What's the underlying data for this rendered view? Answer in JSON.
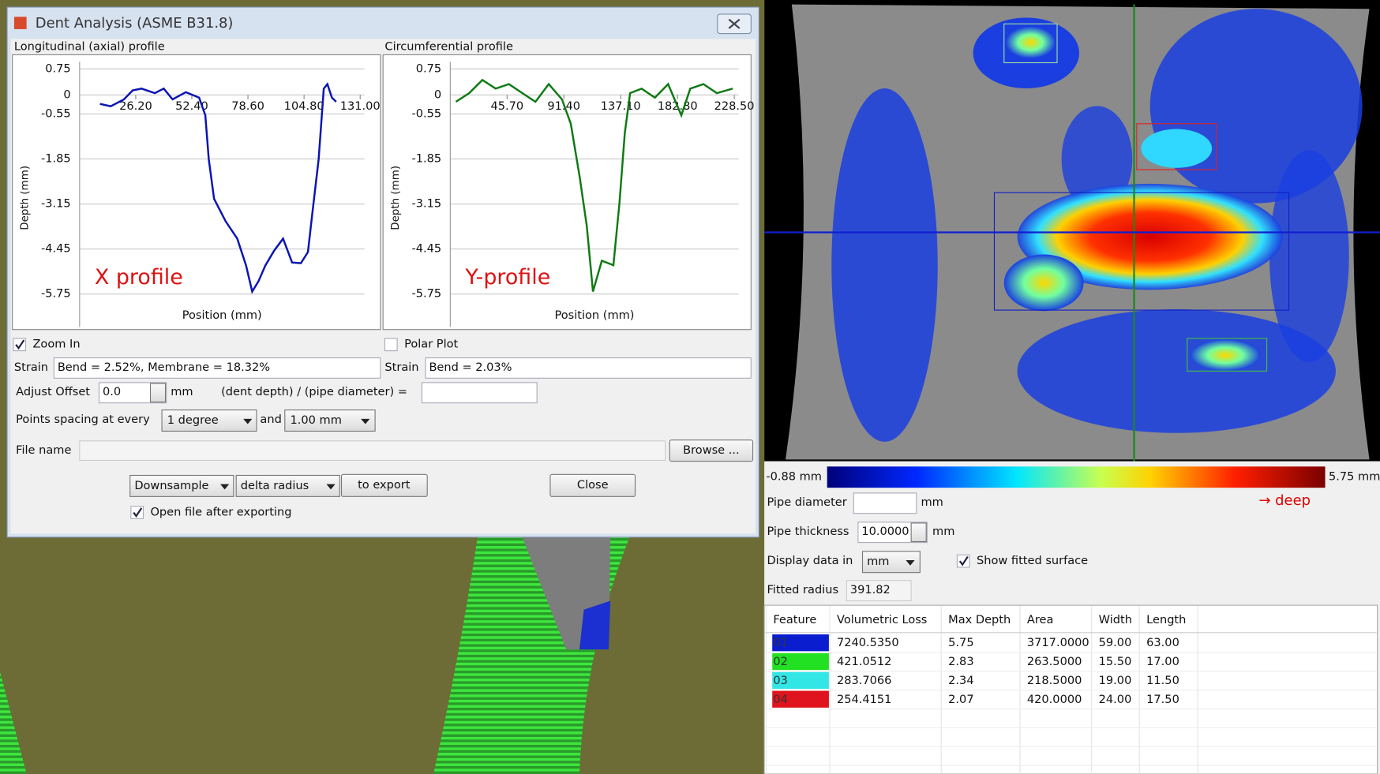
{
  "window": {
    "title": "Dent Analysis (ASME B31.8)"
  },
  "chart_data": [
    {
      "type": "line",
      "title": "Longitudinal (axial) profile",
      "x_label": "Position (mm)",
      "y_label": "Depth (mm)",
      "annotation": "X profile",
      "x": [
        9.5,
        14.5,
        20.7,
        24.8,
        28.9,
        35.1,
        39.3,
        43.4,
        49.6,
        55.8,
        58.7,
        60.3,
        62.8,
        68.2,
        73.6,
        77.7,
        80.6,
        83.5,
        86.8,
        90.9,
        95.0,
        99.2,
        103.3,
        106.6,
        108.7,
        111.6,
        114.0,
        115.7,
        117.8,
        119.8
      ],
      "values": [
        -0.26,
        -0.33,
        -0.13,
        0.13,
        0.18,
        0.05,
        0.18,
        -0.13,
        0.08,
        -0.08,
        -0.59,
        -1.86,
        -3.0,
        -3.65,
        -4.15,
        -4.92,
        -5.68,
        -5.38,
        -4.92,
        -4.49,
        -4.15,
        -4.84,
        -4.86,
        -4.54,
        -3.39,
        -1.86,
        0.18,
        0.31,
        -0.08,
        -0.2
      ],
      "color": "#0a14b4",
      "xlim": [
        0,
        133
      ],
      "ylim": [
        -6.7,
        0.75
      ],
      "xticks": [
        {
          "value": 26.2,
          "label": "26.20"
        },
        {
          "value": 52.4,
          "label": "52.40"
        },
        {
          "value": 78.6,
          "label": "78.60"
        },
        {
          "value": 104.8,
          "label": "104.80"
        },
        {
          "value": 131,
          "label": "131.00"
        }
      ],
      "yticks": [
        0.75,
        0,
        -0.55,
        -1.85,
        -3.15,
        -4.45,
        -5.75
      ],
      "grid": true
    },
    {
      "type": "line",
      "title": "Circumferential profile",
      "x_label": "Position (mm)",
      "y_label": "Depth (mm)",
      "annotation": "Y-profile",
      "x": [
        4.5,
        15.2,
        25.8,
        36.5,
        47.2,
        57.9,
        68.5,
        79.2,
        89.9,
        97.0,
        104.1,
        109.8,
        114.8,
        121.9,
        131.2,
        136.1,
        140.4,
        144.7,
        153.9,
        164.6,
        175.3,
        185.9,
        193.1,
        203.7,
        214.4,
        227.2
      ],
      "values": [
        -0.2,
        0.05,
        0.43,
        0.18,
        0.31,
        0.05,
        -0.2,
        0.31,
        -0.13,
        -0.84,
        -2.37,
        -3.78,
        -5.68,
        -4.79,
        -4.92,
        -3.14,
        -1.1,
        0.05,
        0.18,
        -0.08,
        0.31,
        -0.59,
        0.18,
        0.31,
        0.05,
        0.18
      ],
      "color": "#0f7a14",
      "xlim": [
        0,
        232
      ],
      "ylim": [
        -6.7,
        0.75
      ],
      "xticks": [
        {
          "value": 45.7,
          "label": "45.70"
        },
        {
          "value": 91.4,
          "label": "91.40"
        },
        {
          "value": 137.1,
          "label": "137.10"
        },
        {
          "value": 182.8,
          "label": "182.80"
        },
        {
          "value": 228.5,
          "label": "228.50"
        }
      ],
      "yticks": [
        0.75,
        0,
        -0.55,
        -1.85,
        -3.15,
        -4.45,
        -5.75
      ],
      "grid": true
    }
  ],
  "controls": {
    "zoom_in": "Zoom In",
    "polar_plot": "Polar Plot",
    "strain_label": "Strain",
    "strain_x": "Bend = 2.52%, Membrane = 18.32%",
    "strain_y": "Bend = 2.03%",
    "adjust_offset_label": "Adjust Offset",
    "adjust_offset_value": "0.0",
    "unit": "mm",
    "ratio_label": "(dent depth) / (pipe diameter) =",
    "points_spacing_label": "Points spacing at every",
    "spacing_angle": "1 degree",
    "and": "and",
    "spacing_length": "1.00 mm",
    "file_name_label": "File name",
    "browse": "Browse ...",
    "downsample": "Downsample",
    "delta_radius": "delta radius",
    "to_export": "to export",
    "close": "Close",
    "open_file": "Open file after exporting"
  },
  "right_panel": {
    "colorbar_min": "-0.88 mm",
    "colorbar_max": "5.75 mm",
    "deep": "→ deep",
    "pipe_diameter_label": "Pipe diameter",
    "pipe_thickness_label": "Pipe thickness",
    "pipe_thickness_value": "10.0000",
    "display_data_label": "Display data in",
    "display_unit": "mm",
    "show_fitted": "Show fitted surface",
    "fitted_radius_label": "Fitted radius",
    "fitted_radius_value": "391.82"
  },
  "table": {
    "columns": [
      "Feature",
      "Volumetric Loss",
      "Max Depth",
      "Area",
      "Width",
      "Length"
    ],
    "rows": [
      [
        "01",
        "7240.5350",
        "5.75",
        "3717.0000",
        "59.00",
        "63.00"
      ],
      [
        "02",
        "421.0512",
        "2.83",
        "263.5000",
        "15.50",
        "17.00"
      ],
      [
        "03",
        "283.7066",
        "2.34",
        "218.5000",
        "19.00",
        "11.50"
      ],
      [
        "04",
        "254.4151",
        "2.07",
        "420.0000",
        "24.00",
        "17.50"
      ]
    ],
    "row_colors": [
      "#0a1ecf",
      "#22e022",
      "#33e6e6",
      "#e0141e"
    ]
  }
}
